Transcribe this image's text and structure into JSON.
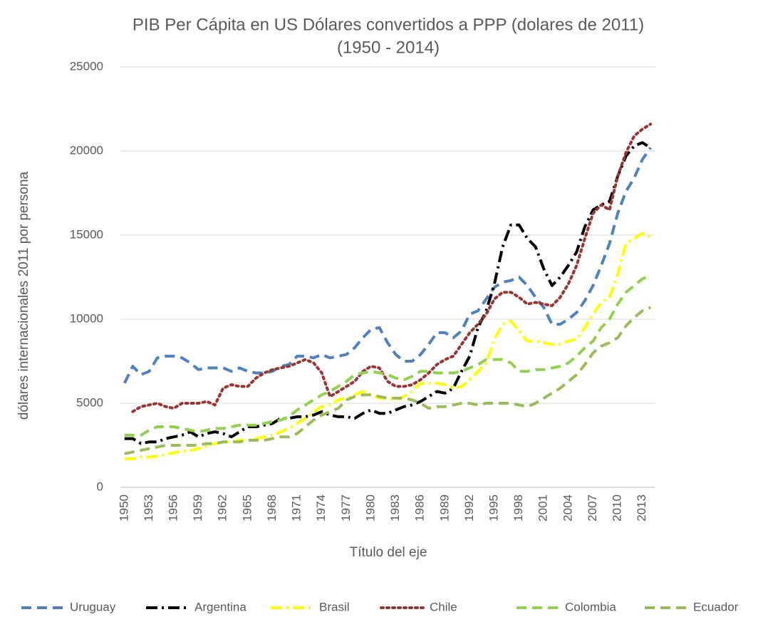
{
  "chart_data": {
    "type": "line",
    "title": "PIB Per Cápita en US Dólares convertidos a PPP (dolares de 2011)",
    "subtitle": "(1950 - 2014)",
    "x_label": "Título del eje",
    "y_label": "dólares  internacionales 2011 por persona",
    "categories": [
      "1950",
      null,
      null,
      "1953",
      null,
      null,
      "1956",
      null,
      null,
      "1959",
      null,
      null,
      "1962",
      null,
      null,
      "1965",
      null,
      null,
      "1968",
      null,
      null,
      "1971",
      null,
      null,
      "1974",
      null,
      null,
      "1977",
      null,
      null,
      "1980",
      null,
      null,
      "1983",
      null,
      null,
      "1986",
      null,
      null,
      "1989",
      null,
      null,
      "1992",
      null,
      null,
      "1995",
      null,
      null,
      "1998",
      null,
      null,
      "2001",
      null,
      null,
      "2004",
      null,
      null,
      "2007",
      null,
      null,
      "2010",
      null,
      null,
      "2013",
      null
    ],
    "ylim": [
      0,
      25000
    ],
    "yticks": [
      0,
      5000,
      10000,
      15000,
      20000,
      25000
    ],
    "grid": true,
    "legend": "bottom",
    "series": [
      {
        "name": "Uruguay",
        "color": "#4f81bd",
        "dash": "14,8",
        "values": [
          6200,
          7200,
          6700,
          6900,
          7700,
          7800,
          7800,
          7700,
          7400,
          7000,
          7100,
          7100,
          7100,
          6900,
          7100,
          6900,
          6800,
          6800,
          6900,
          7200,
          7300,
          7800,
          7800,
          7700,
          7900,
          7700,
          7800,
          7900,
          8300,
          8900,
          9400,
          9500,
          8600,
          7900,
          7500,
          7500,
          7900,
          8500,
          9200,
          9200,
          8900,
          9300,
          10300,
          10500,
          11200,
          11900,
          12200,
          12300,
          12500,
          12000,
          11300,
          10700,
          9700,
          9700,
          10000,
          10400,
          11100,
          12000,
          13200,
          14500,
          16300,
          17600,
          18400,
          19500,
          20200
        ]
      },
      {
        "name": "Argentina",
        "color": "#000000",
        "dash": "16,6,3,6",
        "values": [
          2900,
          2900,
          2600,
          2700,
          2700,
          2900,
          3000,
          3100,
          3300,
          3000,
          3200,
          3300,
          3200,
          3000,
          3300,
          3600,
          3600,
          3700,
          3800,
          4100,
          4100,
          4200,
          4200,
          4300,
          4500,
          4300,
          4200,
          4200,
          4100,
          4400,
          4600,
          4400,
          4400,
          4600,
          4800,
          4900,
          5100,
          5400,
          5700,
          5600,
          5900,
          6900,
          7800,
          9500,
          10500,
          12100,
          14300,
          15600,
          15600,
          14800,
          14300,
          13000,
          12000,
          12500,
          13200,
          14000,
          15500,
          16500,
          16800,
          17000,
          18500,
          19700,
          20300,
          20500,
          20200
        ]
      },
      {
        "name": "Brasil",
        "color": "#ffff00",
        "dash": "16,6,3,6",
        "values": [
          1700,
          1700,
          1800,
          1800,
          1850,
          1950,
          2050,
          2150,
          2200,
          2300,
          2450,
          2600,
          2700,
          2700,
          2800,
          2800,
          2900,
          3000,
          3100,
          3300,
          3500,
          3800,
          4100,
          4500,
          4800,
          4900,
          5200,
          5300,
          5500,
          5700,
          5500,
          5300,
          5300,
          5200,
          5400,
          5700,
          6200,
          6200,
          6200,
          6100,
          5900,
          6000,
          6400,
          6900,
          7400,
          8800,
          9700,
          9900,
          9300,
          8700,
          8700,
          8600,
          8500,
          8500,
          8700,
          8800,
          9500,
          10300,
          11000,
          11300,
          12700,
          14500,
          14800,
          15100,
          14900
        ]
      },
      {
        "name": "Chile",
        "color": "#953735",
        "dash": "3,5",
        "values": [
          null,
          4500,
          4800,
          4900,
          5000,
          4800,
          4700,
          5000,
          5000,
          5000,
          5100,
          4900,
          5900,
          6100,
          6000,
          6000,
          6500,
          6800,
          7000,
          7100,
          7200,
          7400,
          7600,
          7400,
          6800,
          5400,
          5700,
          6000,
          6300,
          6900,
          7200,
          7100,
          6300,
          6000,
          6000,
          6100,
          6400,
          6800,
          7300,
          7600,
          7800,
          8500,
          9200,
          9700,
          10300,
          11200,
          11600,
          11600,
          11300,
          10900,
          11000,
          10900,
          10800,
          11300,
          12100,
          13200,
          14800,
          16300,
          16800,
          16500,
          18500,
          19900,
          20900,
          21300,
          21600
        ]
      },
      {
        "name": "Colombia",
        "color": "#92d050",
        "dash": "14,8",
        "values": [
          3100,
          3100,
          3100,
          3400,
          3600,
          3600,
          3600,
          3500,
          3400,
          3300,
          3400,
          3500,
          3500,
          3600,
          3700,
          3700,
          3700,
          3800,
          3900,
          4000,
          4200,
          4600,
          4900,
          5200,
          5500,
          5700,
          6000,
          6300,
          6700,
          6800,
          6900,
          6800,
          6700,
          6500,
          6400,
          6600,
          6900,
          6900,
          6800,
          6800,
          6800,
          6900,
          7100,
          7300,
          7600,
          7600,
          7600,
          7400,
          6900,
          6900,
          7000,
          7000,
          7100,
          7200,
          7400,
          7800,
          8300,
          8700,
          9500,
          10000,
          10900,
          11600,
          12000,
          12400,
          12600
        ]
      },
      {
        "name": "Ecuador",
        "color": "#9bbb59",
        "dash": "14,8",
        "values": [
          2000,
          2100,
          2200,
          2300,
          2400,
          2500,
          2500,
          2500,
          2500,
          2500,
          2600,
          2600,
          2700,
          2700,
          2700,
          2800,
          2800,
          2800,
          2900,
          3000,
          3000,
          3200,
          3600,
          4000,
          4300,
          4500,
          4700,
          5200,
          5400,
          5500,
          5500,
          5400,
          5300,
          5300,
          5300,
          5200,
          5000,
          4700,
          4800,
          4800,
          4900,
          5000,
          5000,
          4900,
          5000,
          5000,
          5000,
          5000,
          4900,
          4800,
          5000,
          5300,
          5600,
          5900,
          6300,
          6700,
          7300,
          8000,
          8400,
          8600,
          8900,
          9600,
          10100,
          10500,
          10700
        ]
      }
    ]
  }
}
